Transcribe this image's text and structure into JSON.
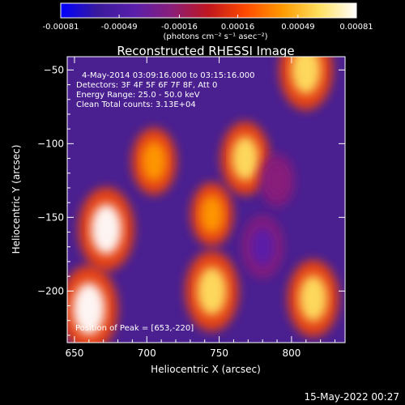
{
  "chart_data": {
    "type": "heatmap",
    "title": "Reconstructed RHESSI Image",
    "xlabel": "Heliocentric X (arcsec)",
    "ylabel": "Heliocentric Y (arcsec)",
    "xlim": [
      645,
      837
    ],
    "ylim": [
      -235,
      -41
    ],
    "x_ticks": [
      650,
      700,
      750,
      800
    ],
    "y_ticks": [
      -50,
      -100,
      -150,
      -200
    ],
    "colorbar": {
      "min": -0.00081,
      "max": 0.00081,
      "ticks": [
        "-0.00081",
        "-0.00049",
        "-0.00016",
        "0.00016",
        "0.00049",
        "0.00081"
      ],
      "unit_label": "(photons cm⁻² s⁻¹ asec⁻²)",
      "colors": [
        "#0000ff",
        "#3a1a9c",
        "#5a1faa",
        "#8a1e7a",
        "#c0161e",
        "#ff4a00",
        "#ff9a00",
        "#ffe060",
        "#ffffff"
      ]
    },
    "annotations": {
      "time_range": "4-May-2014 03:09:16.000 to 03:15:16.000",
      "detectors": "Detectors: 3F 4F 5F 6F 7F 8F, Att 0",
      "energy_range": "Energy Range: 25.0 - 50.0 keV",
      "clean_counts": "Clean     Total counts: 3.13E+04",
      "peak_position": "Position of Peak = [653,-220]"
    },
    "peak": {
      "x": 653,
      "y": -220
    },
    "bright_sources": [
      {
        "x": 810,
        "y": -50,
        "value": 0.0007
      },
      {
        "x": 768,
        "y": -110,
        "value": 0.0006
      },
      {
        "x": 745,
        "y": -148,
        "value": 0.00045
      },
      {
        "x": 672,
        "y": -158,
        "value": 0.00075
      },
      {
        "x": 660,
        "y": -212,
        "value": 0.0008
      },
      {
        "x": 705,
        "y": -112,
        "value": 0.0005
      },
      {
        "x": 745,
        "y": -200,
        "value": 0.0007
      },
      {
        "x": 815,
        "y": -205,
        "value": 0.00065
      },
      {
        "x": 790,
        "y": -125,
        "value": -0.0003
      },
      {
        "x": 780,
        "y": -170,
        "value": -0.00045
      }
    ]
  },
  "footer": {
    "timestamp": "15-May-2022 00:27"
  }
}
